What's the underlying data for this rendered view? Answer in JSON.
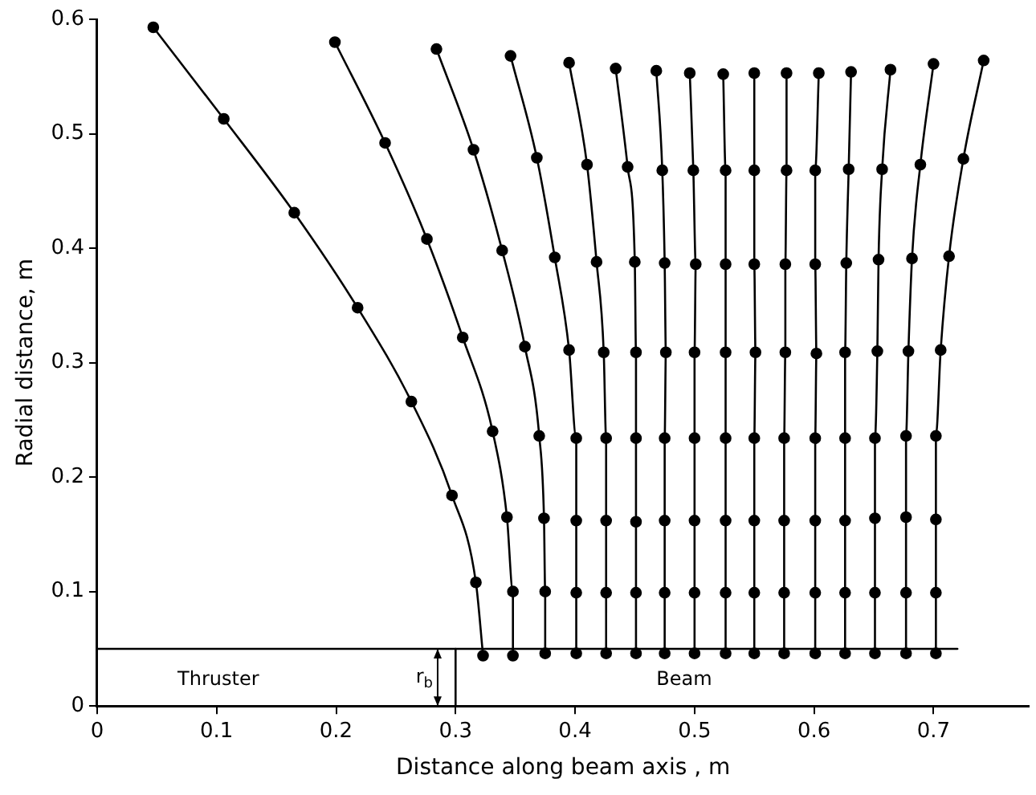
{
  "chart_data": {
    "type": "line",
    "xlabel": "Distance along beam axis , m",
    "ylabel": "Radial distance, m",
    "xlim": [
      0,
      0.78
    ],
    "ylim": [
      0,
      0.6
    ],
    "xticks": [
      0,
      0.1,
      0.2,
      0.3,
      0.4,
      0.5,
      0.6,
      0.7
    ],
    "yticks": [
      0,
      0.1,
      0.2,
      0.3,
      0.4,
      0.5,
      0.6
    ],
    "grid": false,
    "legend": false,
    "marker": "circle",
    "line_style": "solid",
    "series": [
      {
        "color": "#000000",
        "x": [
          0.047,
          0.106,
          0.165,
          0.218,
          0.263,
          0.297,
          0.317,
          0.323
        ],
        "values": [
          0.593,
          0.513,
          0.431,
          0.348,
          0.266,
          0.184,
          0.108,
          0.044
        ]
      },
      {
        "color": "#000000",
        "x": [
          0.199,
          0.241,
          0.276,
          0.306,
          0.331,
          0.343,
          0.348,
          0.348
        ],
        "values": [
          0.58,
          0.492,
          0.408,
          0.322,
          0.24,
          0.165,
          0.1,
          0.044
        ]
      },
      {
        "color": "#000000",
        "x": [
          0.284,
          0.315,
          0.339,
          0.358,
          0.37,
          0.374,
          0.375,
          0.375
        ],
        "values": [
          0.574,
          0.486,
          0.398,
          0.314,
          0.236,
          0.164,
          0.1,
          0.046
        ]
      },
      {
        "color": "#000000",
        "x": [
          0.346,
          0.368,
          0.383,
          0.395,
          0.401,
          0.401,
          0.401,
          0.401
        ],
        "values": [
          0.568,
          0.479,
          0.392,
          0.311,
          0.234,
          0.162,
          0.099,
          0.046
        ]
      },
      {
        "color": "#000000",
        "x": [
          0.395,
          0.41,
          0.418,
          0.424,
          0.426,
          0.426,
          0.426,
          0.426
        ],
        "values": [
          0.562,
          0.473,
          0.388,
          0.309,
          0.234,
          0.162,
          0.099,
          0.046
        ]
      },
      {
        "color": "#000000",
        "x": [
          0.434,
          0.444,
          0.45,
          0.451,
          0.451,
          0.451,
          0.451,
          0.451
        ],
        "values": [
          0.557,
          0.471,
          0.388,
          0.309,
          0.234,
          0.161,
          0.099,
          0.046
        ]
      },
      {
        "color": "#000000",
        "x": [
          0.468,
          0.473,
          0.475,
          0.476,
          0.475,
          0.475,
          0.475,
          0.475
        ],
        "values": [
          0.555,
          0.468,
          0.387,
          0.309,
          0.234,
          0.162,
          0.099,
          0.046
        ]
      },
      {
        "color": "#000000",
        "x": [
          0.496,
          0.499,
          0.501,
          0.5,
          0.5,
          0.5,
          0.5,
          0.5
        ],
        "values": [
          0.553,
          0.468,
          0.386,
          0.309,
          0.234,
          0.162,
          0.099,
          0.046
        ]
      },
      {
        "color": "#000000",
        "x": [
          0.524,
          0.526,
          0.526,
          0.526,
          0.526,
          0.526,
          0.526,
          0.526
        ],
        "values": [
          0.552,
          0.468,
          0.386,
          0.309,
          0.234,
          0.162,
          0.099,
          0.046
        ]
      },
      {
        "color": "#000000",
        "x": [
          0.55,
          0.55,
          0.55,
          0.551,
          0.55,
          0.55,
          0.55,
          0.55
        ],
        "values": [
          0.553,
          0.468,
          0.386,
          0.309,
          0.234,
          0.162,
          0.099,
          0.046
        ]
      },
      {
        "color": "#000000",
        "x": [
          0.577,
          0.577,
          0.576,
          0.576,
          0.575,
          0.575,
          0.575,
          0.575
        ],
        "values": [
          0.553,
          0.468,
          0.386,
          0.309,
          0.234,
          0.162,
          0.099,
          0.046
        ]
      },
      {
        "color": "#000000",
        "x": [
          0.604,
          0.601,
          0.601,
          0.602,
          0.601,
          0.601,
          0.601,
          0.601
        ],
        "values": [
          0.553,
          0.468,
          0.386,
          0.308,
          0.234,
          0.162,
          0.099,
          0.046
        ]
      },
      {
        "color": "#000000",
        "x": [
          0.631,
          0.629,
          0.627,
          0.626,
          0.626,
          0.626,
          0.626,
          0.626
        ],
        "values": [
          0.554,
          0.469,
          0.387,
          0.309,
          0.234,
          0.162,
          0.099,
          0.046
        ]
      },
      {
        "color": "#000000",
        "x": [
          0.664,
          0.657,
          0.654,
          0.653,
          0.651,
          0.651,
          0.651,
          0.651
        ],
        "values": [
          0.556,
          0.469,
          0.39,
          0.31,
          0.234,
          0.164,
          0.099,
          0.046
        ]
      },
      {
        "color": "#000000",
        "x": [
          0.7,
          0.689,
          0.682,
          0.679,
          0.677,
          0.677,
          0.677,
          0.677
        ],
        "values": [
          0.561,
          0.473,
          0.391,
          0.31,
          0.236,
          0.165,
          0.099,
          0.046
        ]
      },
      {
        "color": "#000000",
        "x": [
          0.742,
          0.725,
          0.713,
          0.706,
          0.702,
          0.702,
          0.702,
          0.702
        ],
        "values": [
          0.564,
          0.478,
          0.393,
          0.311,
          0.236,
          0.163,
          0.099,
          0.046
        ]
      },
      {
        "color": "#000000",
        "marker": "none",
        "x": [
          0,
          0.72
        ],
        "values": [
          0.05,
          0.05
        ]
      },
      {
        "color": "#000000",
        "marker": "none",
        "x": [
          0.3,
          0.3
        ],
        "values": [
          0,
          0.05
        ]
      }
    ],
    "annotations": [
      "Thruster",
      "Beam",
      {
        "text": "r$_{b}$",
        "x": 0.285,
        "y": 0.05
      }
    ]
  }
}
